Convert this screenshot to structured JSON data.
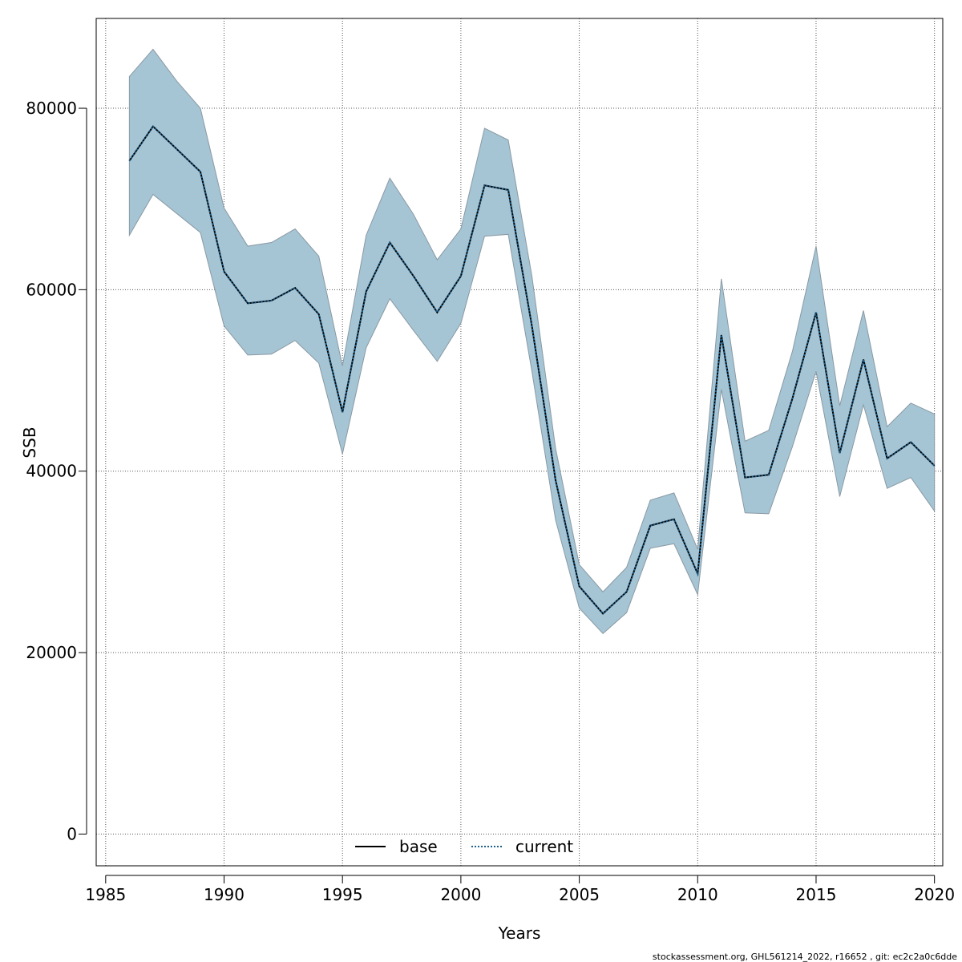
{
  "chart_data": {
    "type": "line",
    "xlabel": "Years",
    "ylabel": "SSB",
    "xlim": [
      1984.6,
      2020.35
    ],
    "ylim": [
      -3500,
      89900
    ],
    "x_ticks": [
      1985,
      1990,
      1995,
      2000,
      2005,
      2010,
      2015,
      2020
    ],
    "y_ticks": [
      0,
      20000,
      40000,
      60000,
      80000
    ],
    "grid": true,
    "legend_position": "bottom",
    "colors": {
      "band_fill": "#a5c4d4",
      "band_stroke": "#8a9aa4",
      "base_line": "#000000",
      "current_line": "#1f5f8b",
      "grid": "#555555"
    },
    "years": [
      1986,
      1987,
      1988,
      1989,
      1990,
      1991,
      1992,
      1993,
      1994,
      1995,
      1996,
      1997,
      1998,
      1999,
      2000,
      2001,
      2002,
      2003,
      2004,
      2005,
      2006,
      2007,
      2008,
      2009,
      2010,
      2011,
      2012,
      2013,
      2014,
      2015,
      2016,
      2017,
      2018,
      2019,
      2020
    ],
    "series": [
      {
        "name": "base",
        "style": "solid",
        "values": [
          74200,
          78000,
          75500,
          73000,
          62000,
          58500,
          58800,
          60200,
          57300,
          46500,
          59800,
          65200,
          61500,
          57500,
          61500,
          71500,
          71000,
          56000,
          39000,
          27300,
          24300,
          26700,
          34000,
          34700,
          28700,
          55000,
          39300,
          39600,
          48000,
          57500,
          42000,
          52300,
          41400,
          43200,
          40600
        ]
      },
      {
        "name": "current",
        "style": "dotted",
        "values": [
          74200,
          78000,
          75500,
          73000,
          62000,
          58500,
          58800,
          60200,
          57300,
          46500,
          59800,
          65200,
          61500,
          57500,
          61500,
          71500,
          71000,
          56000,
          39000,
          27300,
          24300,
          26700,
          34000,
          34700,
          28700,
          55000,
          39300,
          39600,
          48000,
          57500,
          42000,
          52300,
          41400,
          43200,
          40600
        ]
      }
    ],
    "confidence_band": {
      "lower": [
        66000,
        70500,
        68400,
        66300,
        56000,
        52800,
        52900,
        54400,
        51900,
        41900,
        53600,
        59000,
        55500,
        52100,
        56300,
        65900,
        66100,
        51000,
        34600,
        24900,
        22100,
        24400,
        31500,
        32000,
        26400,
        49000,
        35400,
        35300,
        42700,
        51000,
        37200,
        47300,
        38100,
        39300,
        35600
      ],
      "upper": [
        83500,
        86500,
        83000,
        80000,
        69000,
        64800,
        65200,
        66700,
        63700,
        51600,
        66000,
        72300,
        68300,
        63300,
        66700,
        77800,
        76500,
        61500,
        42500,
        29700,
        26700,
        29400,
        36800,
        37600,
        31400,
        61200,
        43300,
        44500,
        53200,
        64800,
        47200,
        57700,
        44900,
        47500,
        46300
      ]
    }
  },
  "footer_text": "stockassessment.org, GHL561214_2022, r16652 , git: ec2c2a0c6dde"
}
